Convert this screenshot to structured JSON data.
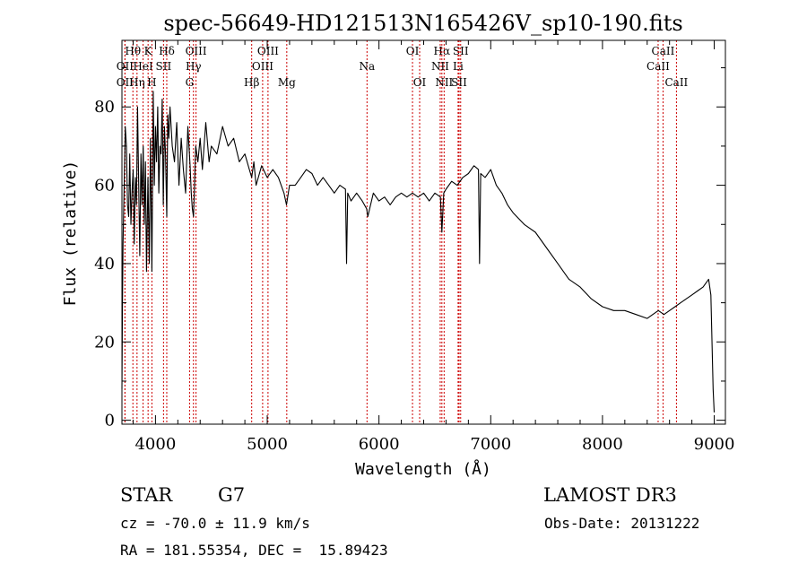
{
  "chart_data": {
    "type": "line",
    "title": "spec-56649-HD121513N165426V_sp10-190.fits",
    "xlabel": "Wavelength (Å)",
    "ylabel": "Flux (relative)",
    "xlim": [
      3700,
      9100
    ],
    "ylim": [
      -1,
      97
    ],
    "xticks": [
      4000,
      5000,
      6000,
      7000,
      8000,
      9000
    ],
    "yticks": [
      0,
      20,
      40,
      60,
      80
    ],
    "grid": false,
    "line_color": "#000000",
    "marker_color": "#cc0000",
    "series": [
      {
        "x": [
          3700,
          3705,
          3710,
          3720,
          3730,
          3740,
          3750,
          3760,
          3770,
          3780,
          3790,
          3800,
          3810,
          3820,
          3830,
          3840,
          3850,
          3860,
          3870,
          3880,
          3890,
          3900,
          3910,
          3920,
          3933,
          3945,
          3955,
          3968,
          3980,
          3990,
          4000,
          4010,
          4020,
          4030,
          4040,
          4050,
          4060,
          4070,
          4080,
          4090,
          4101,
          4110,
          4120,
          4130,
          4150,
          4170,
          4190,
          4210,
          4230,
          4250,
          4270,
          4290,
          4310,
          4320,
          4330,
          4340,
          4350,
          4360,
          4380,
          4400,
          4420,
          4450,
          4480,
          4500,
          4550,
          4600,
          4650,
          4700,
          4750,
          4800,
          4840,
          4861,
          4880,
          4900,
          4950,
          5000,
          5050,
          5100,
          5150,
          5172,
          5200,
          5250,
          5300,
          5350,
          5400,
          5450,
          5500,
          5550,
          5600,
          5650,
          5700,
          5710,
          5720,
          5750,
          5800,
          5850,
          5890,
          5900,
          5950,
          6000,
          6050,
          6100,
          6150,
          6200,
          6250,
          6300,
          6350,
          6400,
          6450,
          6500,
          6550,
          6563,
          6580,
          6600,
          6650,
          6700,
          6750,
          6800,
          6850,
          6890,
          6900,
          6910,
          6950,
          7000,
          7050,
          7100,
          7150,
          7200,
          7300,
          7400,
          7500,
          7600,
          7700,
          7800,
          7900,
          8000,
          8100,
          8200,
          8300,
          8400,
          8450,
          8500,
          8550,
          8600,
          8650,
          8700,
          8750,
          8800,
          8850,
          8900,
          8950,
          8970,
          8990,
          9000
        ],
        "y": [
          8,
          30,
          45,
          60,
          75,
          70,
          55,
          52,
          68,
          50,
          58,
          64,
          45,
          62,
          55,
          80,
          60,
          42,
          68,
          55,
          70,
          50,
          66,
          38,
          62,
          40,
          72,
          38,
          84,
          60,
          75,
          66,
          80,
          58,
          70,
          68,
          82,
          55,
          75,
          68,
          52,
          78,
          72,
          80,
          70,
          66,
          76,
          60,
          72,
          64,
          58,
          75,
          65,
          58,
          54,
          52,
          60,
          70,
          66,
          72,
          64,
          76,
          66,
          70,
          68,
          75,
          70,
          72,
          66,
          68,
          64,
          62,
          66,
          60,
          65,
          62,
          64,
          62,
          58,
          55,
          60,
          60,
          62,
          64,
          63,
          60,
          62,
          60,
          58,
          60,
          59,
          40,
          58,
          56,
          58,
          56,
          54,
          52,
          58,
          56,
          57,
          55,
          57,
          58,
          57,
          58,
          57,
          58,
          56,
          58,
          57,
          48,
          58,
          59,
          61,
          60,
          62,
          63,
          65,
          64,
          40,
          63,
          62,
          64,
          60,
          58,
          55,
          53,
          50,
          48,
          44,
          40,
          36,
          34,
          31,
          29,
          28,
          28,
          27,
          26,
          27,
          28,
          27,
          28,
          29,
          30,
          31,
          32,
          33,
          34,
          36,
          32,
          8,
          2
        ]
      }
    ],
    "lines": [
      {
        "label": "Hθ",
        "wl": 3798,
        "row": 1
      },
      {
        "label": "K",
        "wl": 3934,
        "row": 1
      },
      {
        "label": "Hδ",
        "wl": 4101,
        "row": 1
      },
      {
        "label": "OIII",
        "wl": 4363,
        "row": 1
      },
      {
        "label": "OIII",
        "wl": 5007,
        "row": 1
      },
      {
        "label": "OI",
        "wl": 6300,
        "row": 1
      },
      {
        "label": "Hα",
        "wl": 6563,
        "row": 1
      },
      {
        "label": "SII",
        "wl": 6731,
        "row": 1
      },
      {
        "label": "CaII",
        "wl": 8542,
        "row": 1
      },
      {
        "label": "OII",
        "wl": 3727,
        "row": 2
      },
      {
        "label": "HeI",
        "wl": 3889,
        "row": 2
      },
      {
        "label": "SII",
        "wl": 4072,
        "row": 2
      },
      {
        "label": "Hγ",
        "wl": 4340,
        "row": 2
      },
      {
        "label": "OIII",
        "wl": 4959,
        "row": 2
      },
      {
        "label": "Na",
        "wl": 5893,
        "row": 2
      },
      {
        "label": "NII",
        "wl": 6548,
        "row": 2
      },
      {
        "label": "Li",
        "wl": 6708,
        "row": 2
      },
      {
        "label": "CaII",
        "wl": 8498,
        "row": 2
      },
      {
        "label": "OII",
        "wl": 3727,
        "row": 3
      },
      {
        "label": "Hη",
        "wl": 3835,
        "row": 3
      },
      {
        "label": "H",
        "wl": 3968,
        "row": 3
      },
      {
        "label": "G",
        "wl": 4305,
        "row": 3
      },
      {
        "label": "Hβ",
        "wl": 4861,
        "row": 3
      },
      {
        "label": "Mg",
        "wl": 5175,
        "row": 3
      },
      {
        "label": "OI",
        "wl": 6364,
        "row": 3
      },
      {
        "label": "NII",
        "wl": 6583,
        "row": 3
      },
      {
        "label": "SII",
        "wl": 6717,
        "row": 3
      },
      {
        "label": "CaII",
        "wl": 8662,
        "row": 3
      }
    ]
  },
  "info": {
    "class": "STAR",
    "subclass": "G7",
    "survey": "LAMOST DR3",
    "cz": "cz = -70.0 ± 11.9 km/s",
    "obs_date": "Obs-Date: 20131222",
    "radec": "RA = 181.55354, DEC =  15.89423"
  }
}
